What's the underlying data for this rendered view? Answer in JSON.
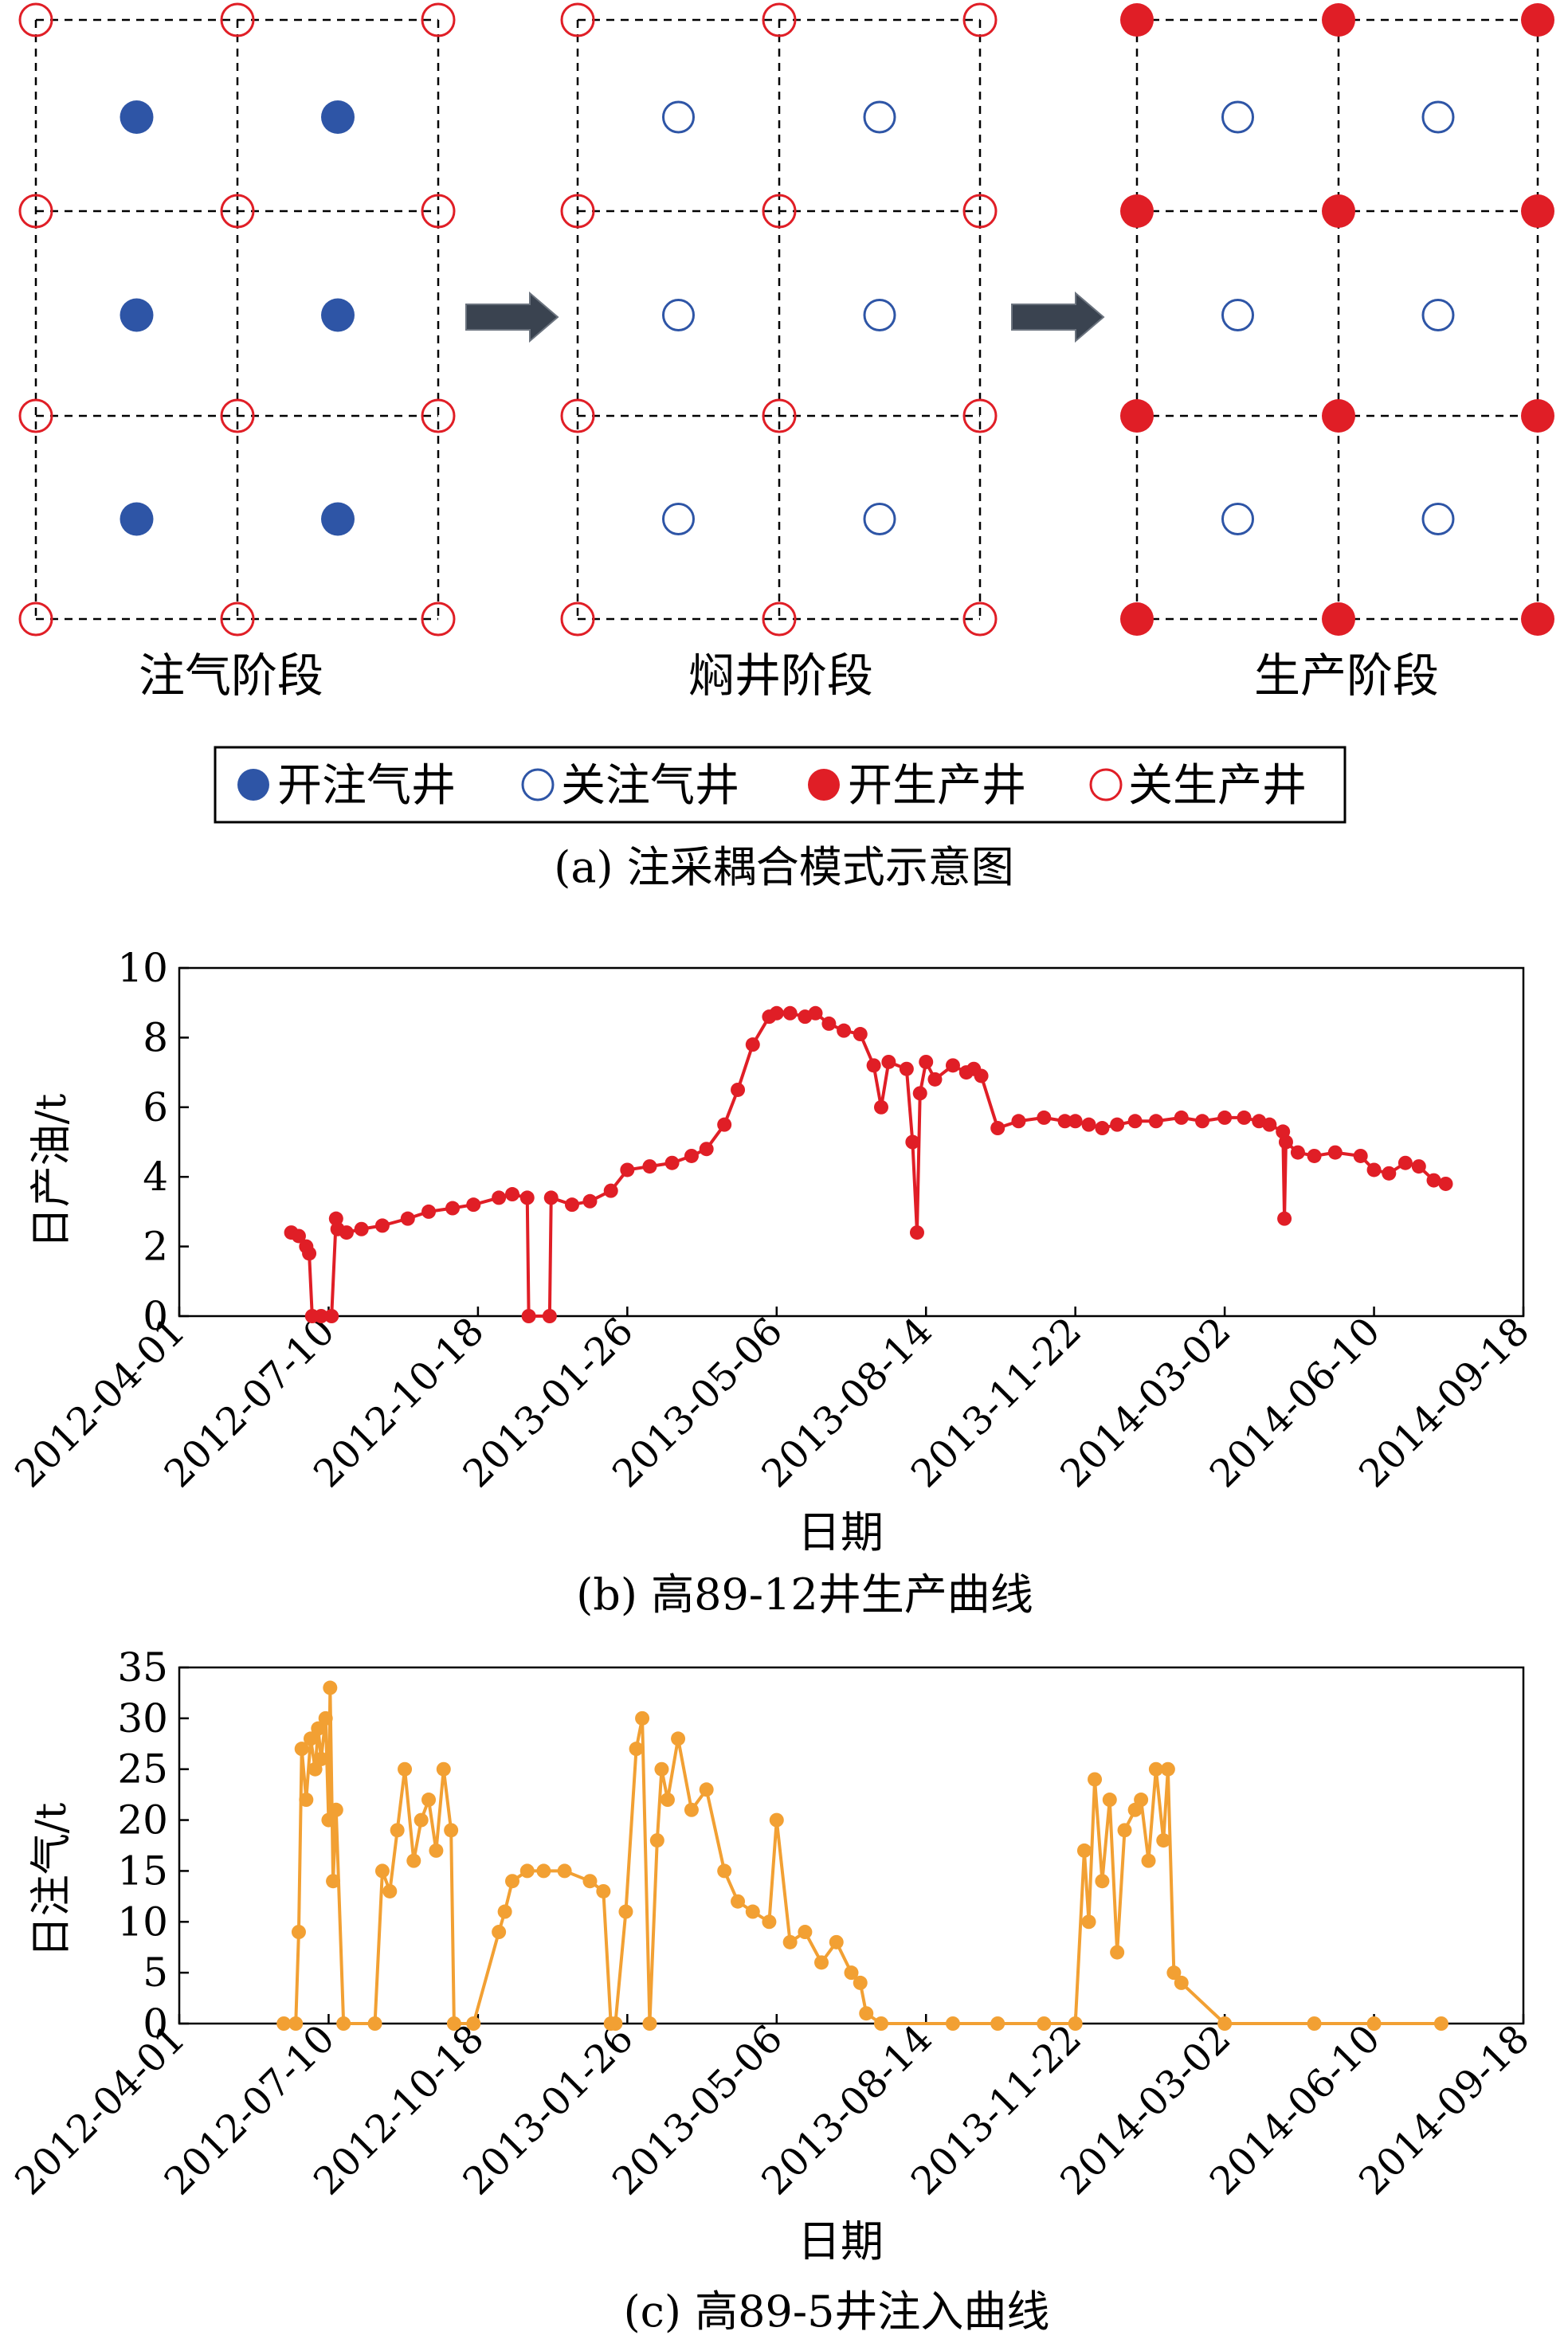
{
  "panel_a": {
    "caption": "(a) 注采耦合模式示意图",
    "stages": [
      {
        "label": "注气阶段",
        "injector_state": "open",
        "producer_state": "closed"
      },
      {
        "label": "焖井阶段",
        "injector_state": "closed",
        "producer_state": "closed"
      },
      {
        "label": "生产阶段",
        "injector_state": "closed",
        "producer_state": "open"
      }
    ],
    "legend": [
      {
        "label": "开注气井",
        "symbol": "filled-blue-circle"
      },
      {
        "label": "关注气井",
        "symbol": "hollow-blue-circle"
      },
      {
        "label": "开生产井",
        "symbol": "filled-red-circle"
      },
      {
        "label": "关生产井",
        "symbol": "hollow-red-circle"
      }
    ],
    "arrow_icon": "right-arrow-icon",
    "colors": {
      "injector": "#2E55A6",
      "producer": "#E01E26",
      "arrow": "#3A4350"
    }
  },
  "chart_data": [
    {
      "id": "b",
      "type": "line",
      "caption": "(b) 高89-12井生产曲线",
      "xlabel": "日期",
      "ylabel": "日产油/t",
      "ylim": [
        0,
        10
      ],
      "yticks": [
        "0",
        "2",
        "4",
        "6",
        "8",
        "10"
      ],
      "xticks": [
        "2012-04-01",
        "2012-07-10",
        "2012-10-18",
        "2013-01-26",
        "2013-05-06",
        "2013-08-14",
        "2013-11-22",
        "2014-03-02",
        "2014-06-10",
        "2014-09-18"
      ],
      "color": "#E01E26",
      "series": [
        {
          "x": [
            "2012-06-15",
            "2012-06-20",
            "2012-06-25",
            "2012-06-27",
            "2012-06-29",
            "2012-07-05",
            "2012-07-12",
            "2012-07-15",
            "2012-07-16",
            "2012-07-22",
            "2012-08-01",
            "2012-08-15",
            "2012-09-01",
            "2012-09-15",
            "2012-10-01",
            "2012-10-15",
            "2012-11-01",
            "2012-11-10",
            "2012-11-20",
            "2012-11-21",
            "2012-12-05",
            "2012-12-06",
            "2012-12-20",
            "2013-01-01",
            "2013-01-15",
            "2013-01-26",
            "2013-02-10",
            "2013-02-25",
            "2013-03-10",
            "2013-03-20",
            "2013-04-01",
            "2013-04-10",
            "2013-04-20",
            "2013-05-01",
            "2013-05-06",
            "2013-05-15",
            "2013-05-25",
            "2013-06-01",
            "2013-06-10",
            "2013-06-20",
            "2013-07-01",
            "2013-07-10",
            "2013-07-15",
            "2013-07-20",
            "2013-08-01",
            "2013-08-05",
            "2013-08-08",
            "2013-08-10",
            "2013-08-14",
            "2013-08-20",
            "2013-09-01",
            "2013-09-10",
            "2013-09-15",
            "2013-09-20",
            "2013-10-01",
            "2013-10-15",
            "2013-11-01",
            "2013-11-15",
            "2013-11-22",
            "2013-12-01",
            "2013-12-10",
            "2013-12-20",
            "2014-01-01",
            "2014-01-15",
            "2014-02-01",
            "2014-02-15",
            "2014-03-02",
            "2014-03-15",
            "2014-03-25",
            "2014-04-01",
            "2014-04-10",
            "2014-04-11",
            "2014-04-12",
            "2014-04-20",
            "2014-05-01",
            "2014-05-15",
            "2014-06-01",
            "2014-06-10",
            "2014-06-20",
            "2014-07-01",
            "2014-07-10",
            "2014-07-20",
            "2014-07-28"
          ],
          "y": [
            2.4,
            2.3,
            2.0,
            1.8,
            0,
            0,
            0,
            2.8,
            2.5,
            2.4,
            2.5,
            2.6,
            2.8,
            3.0,
            3.1,
            3.2,
            3.4,
            3.5,
            3.4,
            0,
            0,
            3.4,
            3.2,
            3.3,
            3.6,
            4.2,
            4.3,
            4.4,
            4.6,
            4.8,
            5.5,
            6.5,
            7.8,
            8.6,
            8.7,
            8.7,
            8.6,
            8.7,
            8.4,
            8.2,
            8.1,
            7.2,
            6.0,
            7.3,
            7.1,
            5.0,
            2.4,
            6.4,
            7.3,
            6.8,
            7.2,
            7.0,
            7.1,
            6.9,
            5.4,
            5.6,
            5.7,
            5.6,
            5.6,
            5.5,
            5.4,
            5.5,
            5.6,
            5.6,
            5.7,
            5.6,
            5.7,
            5.7,
            5.6,
            5.5,
            5.3,
            2.8,
            5.0,
            4.7,
            4.6,
            4.7,
            4.6,
            4.2,
            4.1,
            4.4,
            4.3,
            3.9,
            3.8
          ]
        }
      ]
    },
    {
      "id": "c",
      "type": "line",
      "caption": "(c) 高89-5井注入曲线",
      "xlabel": "日期",
      "ylabel": "日注气/t",
      "ylim": [
        0,
        35
      ],
      "yticks": [
        "0",
        "5",
        "10",
        "15",
        "20",
        "25",
        "30",
        "35"
      ],
      "xticks": [
        "2012-04-01",
        "2012-07-10",
        "2012-10-18",
        "2013-01-26",
        "2013-05-06",
        "2013-08-14",
        "2013-11-22",
        "2014-03-02",
        "2014-06-10",
        "2014-09-18"
      ],
      "color": "#F2A033",
      "series": [
        {
          "x": [
            "2012-06-10",
            "2012-06-18",
            "2012-06-20",
            "2012-06-22",
            "2012-06-25",
            "2012-06-28",
            "2012-07-01",
            "2012-07-03",
            "2012-07-05",
            "2012-07-08",
            "2012-07-10",
            "2012-07-11",
            "2012-07-13",
            "2012-07-15",
            "2012-07-20",
            "2012-08-10",
            "2012-08-15",
            "2012-08-20",
            "2012-08-25",
            "2012-08-30",
            "2012-09-05",
            "2012-09-10",
            "2012-09-15",
            "2012-09-20",
            "2012-09-25",
            "2012-09-30",
            "2012-10-02",
            "2012-10-15",
            "2012-11-01",
            "2012-11-05",
            "2012-11-10",
            "2012-11-20",
            "2012-12-01",
            "2012-12-15",
            "2013-01-01",
            "2013-01-10",
            "2013-01-15",
            "2013-01-18",
            "2013-01-25",
            "2013-02-01",
            "2013-02-05",
            "2013-02-10",
            "2013-02-15",
            "2013-02-18",
            "2013-02-22",
            "2013-03-01",
            "2013-03-10",
            "2013-03-20",
            "2013-04-01",
            "2013-04-10",
            "2013-04-20",
            "2013-05-01",
            "2013-05-06",
            "2013-05-15",
            "2013-05-25",
            "2013-06-05",
            "2013-06-15",
            "2013-06-25",
            "2013-07-01",
            "2013-07-05",
            "2013-07-15",
            "2013-09-01",
            "2013-10-01",
            "2013-11-01",
            "2013-11-22",
            "2013-11-28",
            "2013-12-01",
            "2013-12-05",
            "2013-12-10",
            "2013-12-15",
            "2013-12-20",
            "2013-12-25",
            "2014-01-01",
            "2014-01-05",
            "2014-01-10",
            "2014-01-15",
            "2014-01-20",
            "2014-01-23",
            "2014-01-27",
            "2014-02-01",
            "2014-03-02",
            "2014-05-01",
            "2014-06-10",
            "2014-07-25"
          ],
          "y": [
            0,
            0,
            9,
            27,
            22,
            28,
            25,
            29,
            26,
            30,
            20,
            33,
            14,
            21,
            0,
            0,
            15,
            13,
            19,
            25,
            16,
            20,
            22,
            17,
            25,
            19,
            0,
            0,
            9,
            11,
            14,
            15,
            15,
            15,
            14,
            13,
            0,
            0,
            11,
            27,
            30,
            0,
            18,
            25,
            22,
            28,
            21,
            23,
            15,
            12,
            11,
            10,
            20,
            8,
            9,
            6,
            8,
            5,
            4,
            1,
            0,
            0,
            0,
            0,
            0,
            17,
            10,
            24,
            14,
            22,
            7,
            19,
            21,
            22,
            16,
            25,
            18,
            25,
            5,
            4,
            0,
            0,
            0,
            0
          ]
        }
      ]
    }
  ]
}
